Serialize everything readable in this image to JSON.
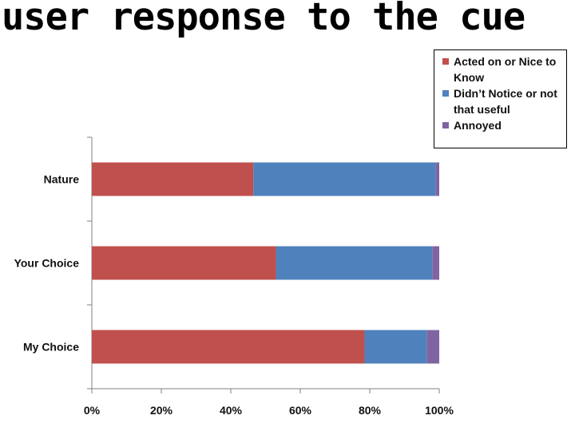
{
  "slide": {
    "title": "user response to the cue"
  },
  "chart_data": {
    "type": "bar",
    "orientation": "horizontal",
    "stacked": true,
    "percent_scale": true,
    "categories": [
      "Nature",
      "Your Choice",
      "My Choice"
    ],
    "series": [
      {
        "name": "Acted on or Nice to Know",
        "color": "#C0504D",
        "values": [
          46.5,
          53,
          78.5
        ]
      },
      {
        "name": "Didn’t Notice or not that useful",
        "color": "#4F81BD",
        "values": [
          52.5,
          45,
          18
        ]
      },
      {
        "name": "Annoyed",
        "color": "#8064A2",
        "values": [
          1,
          2,
          3.5
        ]
      }
    ],
    "xlim": [
      0,
      100
    ],
    "xticks": [
      "0%",
      "20%",
      "40%",
      "60%",
      "80%",
      "100%"
    ],
    "legend_position": "top-right",
    "grid": false,
    "title": "",
    "xlabel": "",
    "ylabel": ""
  }
}
